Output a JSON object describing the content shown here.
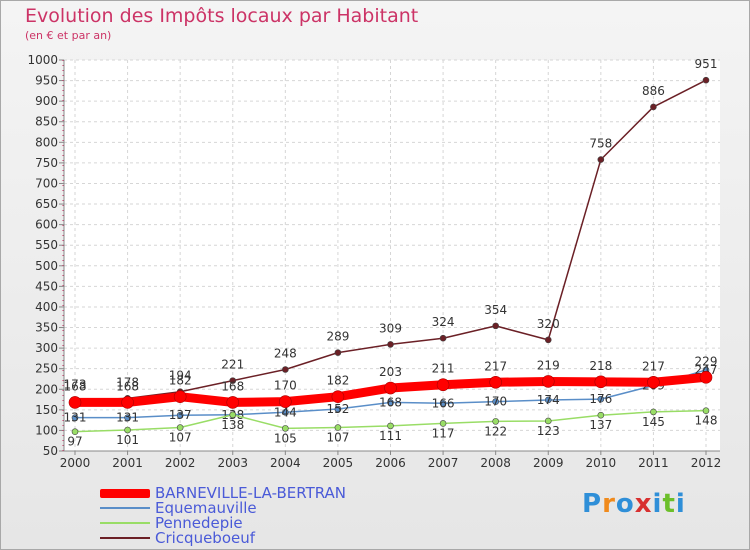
{
  "title": "Evolution des Impôts locaux par Habitant",
  "subtitle": "(en € et par an)",
  "logo": "Proxiti",
  "chart_data": {
    "type": "line",
    "title": "Evolution des Impôts locaux par Habitant",
    "subtitle": "(en € et par an)",
    "xlabel": "",
    "ylabel": "",
    "x": [
      "2000",
      "2001",
      "2002",
      "2003",
      "2004",
      "2005",
      "2006",
      "2007",
      "2008",
      "2009",
      "2010",
      "2011",
      "2012"
    ],
    "yticks": [
      50,
      100,
      150,
      200,
      250,
      300,
      350,
      400,
      450,
      500,
      550,
      600,
      650,
      700,
      750,
      800,
      850,
      900,
      950,
      1000
    ],
    "ylim": [
      50,
      1000
    ],
    "grid": true,
    "legend_position": "bottom-left",
    "series": [
      {
        "name": "BARNEVILLE-LA-BERTRAN",
        "color": "#ff0000",
        "values": [
          168,
          168,
          182,
          168,
          170,
          182,
          203,
          211,
          217,
          219,
          218,
          217,
          229
        ]
      },
      {
        "name": "Equemauville",
        "color": "#5a8ec8",
        "values": [
          131,
          131,
          137,
          138,
          144,
          152,
          168,
          166,
          170,
          174,
          176,
          209,
          247
        ]
      },
      {
        "name": "Pennedepie",
        "color": "#99dd66",
        "values": [
          97,
          101,
          107,
          138,
          105,
          107,
          111,
          117,
          122,
          123,
          137,
          145,
          148
        ]
      },
      {
        "name": "Cricqueboeuf",
        "color": "#6b2026",
        "values": [
          173,
          178,
          194,
          221,
          248,
          289,
          309,
          324,
          354,
          320,
          758,
          886,
          951
        ]
      }
    ]
  }
}
